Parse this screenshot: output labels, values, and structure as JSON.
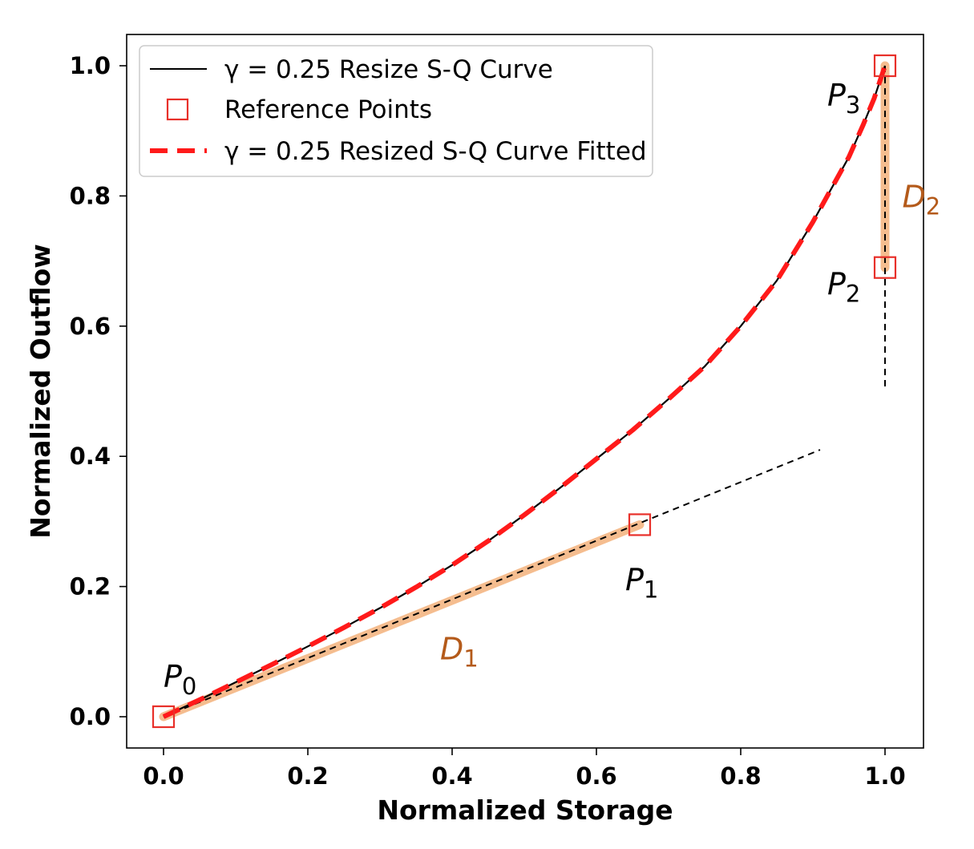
{
  "chart_data": {
    "type": "line",
    "title": "",
    "xlabel": "Normalized Storage",
    "ylabel": "Normalized Outflow",
    "xlim": [
      -0.06,
      1.06
    ],
    "ylim": [
      -0.05,
      1.06
    ],
    "xticks": [
      "0.0",
      "0.2",
      "0.4",
      "0.6",
      "0.8",
      "1.0"
    ],
    "xtick_values": [
      0.0,
      0.2,
      0.4,
      0.6,
      0.8,
      1.0
    ],
    "yticks": [
      "0.0",
      "0.2",
      "0.4",
      "0.6",
      "0.8",
      "1.0"
    ],
    "ytick_values": [
      0.0,
      0.2,
      0.4,
      0.6,
      0.8,
      1.0
    ],
    "grid": false,
    "legend_position": "top-left",
    "legend": [
      {
        "label": "γ = 0.25 Resize S-Q Curve",
        "style": "solid-black"
      },
      {
        "label": "Reference Points",
        "style": "red-square"
      },
      {
        "label": "γ = 0.25 Resized S-Q Curve Fitted",
        "style": "dashed-red"
      }
    ],
    "series": [
      {
        "name": "γ = 0.25 Resize S-Q Curve",
        "x": [
          0.0,
          0.05,
          0.1,
          0.15,
          0.2,
          0.25,
          0.3,
          0.35,
          0.4,
          0.45,
          0.5,
          0.55,
          0.6,
          0.65,
          0.7,
          0.75,
          0.8,
          0.85,
          0.9,
          0.925,
          0.95,
          0.97,
          0.985,
          1.0
        ],
        "y": [
          0.0,
          0.026,
          0.053,
          0.08,
          0.108,
          0.137,
          0.167,
          0.199,
          0.233,
          0.27,
          0.31,
          0.352,
          0.396,
          0.44,
          0.488,
          0.538,
          0.6,
          0.67,
          0.76,
          0.81,
          0.86,
          0.91,
          0.95,
          1.0
        ]
      },
      {
        "name": "γ = 0.25 Resized S-Q Curve Fitted",
        "x": [
          0.0,
          0.05,
          0.1,
          0.15,
          0.2,
          0.25,
          0.3,
          0.35,
          0.4,
          0.45,
          0.5,
          0.55,
          0.6,
          0.65,
          0.7,
          0.75,
          0.8,
          0.85,
          0.9,
          0.925,
          0.95,
          0.97,
          0.985,
          1.0
        ],
        "y": [
          0.0,
          0.026,
          0.053,
          0.08,
          0.108,
          0.137,
          0.167,
          0.199,
          0.233,
          0.27,
          0.31,
          0.352,
          0.396,
          0.44,
          0.488,
          0.538,
          0.6,
          0.67,
          0.76,
          0.81,
          0.86,
          0.91,
          0.95,
          1.0
        ]
      }
    ],
    "reference_points": [
      {
        "label": "P",
        "sub": "0",
        "x": 0.0,
        "y": 0.0
      },
      {
        "label": "P",
        "sub": "1",
        "x": 0.66,
        "y": 0.295
      },
      {
        "label": "P",
        "sub": "2",
        "x": 1.0,
        "y": 0.69
      },
      {
        "label": "P",
        "sub": "3",
        "x": 1.0,
        "y": 1.0
      }
    ],
    "tangent_lines": [
      {
        "x1": 0.0,
        "y1": 0.0,
        "x2": 0.91,
        "y2": 0.41
      },
      {
        "x1": 1.0,
        "y1": 1.0,
        "x2": 1.0,
        "y2": 0.5
      }
    ],
    "distance_segments": [
      {
        "label": "D",
        "sub": "1",
        "x1": 0.0,
        "y1": 0.0,
        "x2": 0.66,
        "y2": 0.295
      },
      {
        "label": "D",
        "sub": "2",
        "x1": 1.0,
        "y1": 0.69,
        "x2": 1.0,
        "y2": 1.0
      }
    ],
    "annotations": [
      {
        "text": "D",
        "sub": "1",
        "x": 0.43,
        "y": 0.105
      },
      {
        "text": "D",
        "sub": "2",
        "x": 1.025,
        "y": 0.8
      }
    ],
    "colors": {
      "curve": "#000000",
      "fitted": "#ff1a1a",
      "marker": "#e8302a",
      "distance": "#f4b27c",
      "annotation": "#b45a1a"
    }
  }
}
